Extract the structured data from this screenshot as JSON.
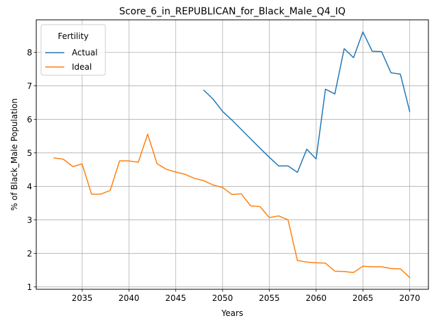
{
  "chart_data": {
    "type": "line",
    "title": "Score_6_in_REPUBLICAN_for_Black_Male_Q4_IQ",
    "xlabel": "Years",
    "ylabel": "% of Black_Male Population",
    "xlim": [
      2030.1,
      2072.0
    ],
    "ylim": [
      0.93,
      8.97
    ],
    "xticks": [
      2035,
      2040,
      2045,
      2050,
      2055,
      2060,
      2065,
      2070
    ],
    "yticks": [
      1,
      2,
      3,
      4,
      5,
      6,
      7,
      8
    ],
    "grid": true,
    "legend": {
      "title": "Fertility",
      "placement": "top-left",
      "entries": [
        "Actual",
        "Ideal"
      ]
    },
    "series": [
      {
        "name": "Actual",
        "color": "#1f77b4",
        "x": [
          2048,
          2049,
          2050,
          2051,
          2052,
          2053,
          2054,
          2055,
          2056,
          2057,
          2058,
          2059,
          2060,
          2061,
          2062,
          2063,
          2064,
          2065,
          2066,
          2067,
          2068,
          2069,
          2070
        ],
        "y": [
          6.87,
          6.6,
          6.24,
          5.98,
          5.7,
          5.42,
          5.14,
          4.87,
          4.61,
          4.61,
          4.42,
          5.11,
          4.82,
          6.9,
          6.76,
          8.11,
          7.84,
          8.61,
          8.03,
          8.02,
          7.39,
          7.35,
          6.24
        ]
      },
      {
        "name": "Ideal",
        "color": "#ff7f0e",
        "x": [
          2032,
          2033,
          2034,
          2035,
          2036,
          2037,
          2038,
          2039,
          2040,
          2041,
          2042,
          2043,
          2044,
          2045,
          2046,
          2047,
          2048,
          2049,
          2050,
          2051,
          2052,
          2053,
          2054,
          2055,
          2056,
          2057,
          2058,
          2059,
          2060,
          2061,
          2062,
          2063,
          2064,
          2065,
          2066,
          2067,
          2068,
          2069,
          2070
        ],
        "y": [
          4.85,
          4.81,
          4.59,
          4.67,
          3.77,
          3.77,
          3.88,
          4.76,
          4.76,
          4.72,
          5.56,
          4.68,
          4.51,
          4.43,
          4.36,
          4.24,
          4.17,
          4.04,
          3.97,
          3.76,
          3.78,
          3.42,
          3.4,
          3.07,
          3.12,
          3.0,
          1.79,
          1.74,
          1.72,
          1.71,
          1.47,
          1.46,
          1.43,
          1.62,
          1.6,
          1.6,
          1.55,
          1.54,
          1.28
        ]
      }
    ]
  }
}
